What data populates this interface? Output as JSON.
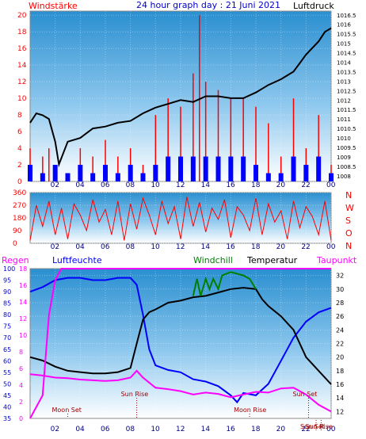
{
  "header": {
    "left_label": "Windstärke",
    "title": "24 hour graph day : 21 Juni 2021",
    "right_label": "Luftdruck"
  },
  "colors": {
    "wind": "#ff0000",
    "gust_bars": "#ff0000",
    "wind_blue": "#0000ff",
    "pressure": "#000000",
    "direction": "#ff0000",
    "humidity": "#0000ff",
    "temperature": "#000000",
    "windchill": "#008000",
    "dewpoint": "#ff00ff",
    "rain": "#ff00ff",
    "sun_text": "#a00000",
    "moon_text": "#a00000"
  },
  "x_ticks": [
    "02",
    "04",
    "06",
    "08",
    "10",
    "12",
    "14",
    "16",
    "18",
    "20",
    "22",
    "00"
  ],
  "chart_data": [
    {
      "type": "bar",
      "title": "24 hour graph day : 21 Juni 2021",
      "left_axis": {
        "label": "Windstärke",
        "ticks": [
          0,
          2,
          4,
          6,
          8,
          10,
          12,
          14,
          16,
          18,
          20
        ],
        "range": [
          0,
          20.5
        ]
      },
      "right_axis": {
        "label": "Luftdruck",
        "ticks": [
          "1008",
          "1008.5",
          "1009",
          "1009.5",
          "1010",
          "1010.5",
          "1011",
          "1011.5",
          "1012",
          "1012.5",
          "1013",
          "1013.5",
          "1014",
          "1014.5",
          "1015",
          "1015.5",
          "1016",
          "1016.5"
        ],
        "range": [
          1007.7,
          1016.7
        ]
      },
      "series": [
        {
          "name": "Windstärke",
          "kind": "gust",
          "color": "#ff0000",
          "x": [
            0,
            1,
            1.5,
            2,
            3,
            4,
            5,
            6,
            7,
            8,
            9,
            10,
            11,
            12,
            13,
            13.5,
            14,
            15,
            16,
            17,
            18,
            19,
            20,
            21,
            22,
            23,
            24
          ],
          "values": [
            4,
            3,
            4,
            2,
            1,
            4,
            3,
            5,
            3,
            4,
            2,
            8,
            10,
            9,
            13,
            20,
            12,
            11,
            10,
            10,
            9,
            7,
            3,
            10,
            4,
            8,
            2
          ]
        },
        {
          "name": "wind",
          "kind": "mean",
          "color": "#0000ff",
          "x": [
            0,
            1,
            2,
            3,
            4,
            5,
            6,
            7,
            8,
            9,
            10,
            11,
            12,
            13,
            14,
            15,
            16,
            17,
            18,
            19,
            20,
            21,
            22,
            23,
            24
          ],
          "values": [
            2,
            1,
            2,
            1,
            2,
            1,
            2,
            1,
            2,
            1,
            2,
            3,
            3,
            3,
            3,
            3,
            3,
            3,
            2,
            1,
            1,
            3,
            2,
            3,
            1
          ]
        },
        {
          "name": "Luftdruck",
          "kind": "line",
          "color": "#000000",
          "x": [
            0,
            0.5,
            1,
            1.5,
            2,
            2.3,
            3,
            4,
            5,
            6,
            7,
            8,
            9,
            10,
            11,
            12,
            13,
            14,
            15,
            16,
            17,
            18,
            19,
            20,
            21,
            22,
            23,
            23.5,
            24
          ],
          "values": [
            1010.8,
            1011.3,
            1011.2,
            1011.0,
            1009.8,
            1008.6,
            1009.8,
            1010.0,
            1010.5,
            1010.6,
            1010.8,
            1010.9,
            1011.3,
            1011.6,
            1011.8,
            1012.0,
            1011.9,
            1012.2,
            1012.2,
            1012.1,
            1012.1,
            1012.4,
            1012.8,
            1013.1,
            1013.5,
            1014.4,
            1015.1,
            1015.6,
            1015.8
          ]
        }
      ]
    },
    {
      "type": "line",
      "title": "",
      "left_axis": {
        "ticks": [
          0,
          90,
          180,
          270,
          360
        ],
        "range": [
          0,
          360
        ]
      },
      "right_labels": [
        "N",
        "W",
        "S",
        "O",
        "N"
      ],
      "series": [
        {
          "name": "direction",
          "color": "#ff0000",
          "x": [
            0,
            0.5,
            1,
            1.5,
            2,
            2.5,
            3,
            3.5,
            4,
            4.5,
            5,
            5.5,
            6,
            6.5,
            7,
            7.5,
            8,
            8.5,
            9,
            9.5,
            10,
            10.5,
            11,
            11.5,
            12,
            12.5,
            13,
            13.5,
            14,
            14.5,
            15,
            15.5,
            16,
            16.5,
            17,
            17.5,
            18,
            18.5,
            19,
            19.5,
            20,
            20.5,
            21,
            21.5,
            22,
            22.5,
            23,
            23.5,
            24
          ],
          "values": [
            20,
            270,
            120,
            300,
            60,
            250,
            30,
            280,
            200,
            90,
            310,
            150,
            240,
            60,
            300,
            20,
            280,
            100,
            320,
            200,
            60,
            300,
            140,
            260,
            30,
            330,
            120,
            290,
            80,
            250,
            170,
            310,
            40,
            260,
            200,
            90,
            320,
            60,
            280,
            150,
            230,
            30,
            300,
            110,
            260,
            190,
            60,
            300,
            20
          ]
        }
      ]
    },
    {
      "type": "line",
      "title": "",
      "legend": [
        "Regen",
        "Luftfeuchte",
        "Windchill",
        "Temperatur",
        "Taupunkt"
      ],
      "left_axis_outer": {
        "label": "Regen",
        "ticks": [
          35,
          40,
          45,
          50,
          55,
          60,
          65,
          70,
          75,
          80,
          85,
          90,
          95,
          100
        ],
        "range": [
          35,
          100
        ]
      },
      "left_axis_inner": {
        "label": "Luftfeuchte",
        "ticks": [
          0,
          2,
          4,
          6,
          8,
          10,
          12,
          14,
          16,
          18
        ],
        "range": [
          0,
          18
        ]
      },
      "right_axis": {
        "label": "Temperatur",
        "ticks": [
          12,
          14,
          16,
          18,
          20,
          22,
          24,
          26,
          28,
          30,
          32
        ],
        "range": [
          11,
          33
        ]
      },
      "series": [
        {
          "name": "Luftfeuchte",
          "color": "#0000ff",
          "x": [
            0,
            1,
            2,
            3,
            4,
            5,
            6,
            7,
            8,
            8.5,
            9,
            9.5,
            10,
            11,
            12,
            13,
            14,
            15,
            16,
            16.5,
            17,
            18,
            19,
            20,
            21,
            22,
            23,
            24
          ],
          "values": [
            90,
            92,
            95,
            96,
            96,
            95,
            95,
            96,
            96,
            93,
            80,
            65,
            58,
            56,
            55,
            52,
            51,
            49,
            45,
            42,
            46,
            45,
            50,
            60,
            70,
            77,
            81,
            83
          ]
        },
        {
          "name": "Temperatur",
          "color": "#000000",
          "x": [
            0,
            1,
            2,
            3,
            4,
            5,
            6,
            7,
            8,
            8.5,
            9,
            9.5,
            10,
            11,
            12,
            13,
            14,
            15,
            16,
            17,
            18,
            18.5,
            19,
            20,
            21,
            22,
            23,
            24
          ],
          "values": [
            20,
            19.5,
            18.6,
            18,
            17.8,
            17.6,
            17.6,
            17.8,
            18.4,
            22,
            25.5,
            26.6,
            27,
            28,
            28.3,
            28.8,
            29,
            29.5,
            30,
            30.2,
            30,
            28.5,
            27.5,
            26,
            24,
            20,
            18,
            16
          ]
        },
        {
          "name": "Windchill",
          "color": "#008000",
          "x": [
            13,
            13.3,
            13.6,
            14,
            14.3,
            14.6,
            15,
            15.3,
            16,
            17,
            17.5,
            18
          ],
          "values": [
            29,
            31.5,
            29,
            31.5,
            30,
            31.5,
            30,
            32,
            32.5,
            32,
            31.5,
            30
          ]
        },
        {
          "name": "Taupunkt",
          "color": "#ff00ff",
          "x": [
            0,
            1,
            2,
            3,
            4,
            5,
            6,
            7,
            8,
            8.5,
            9,
            10,
            11,
            12,
            13,
            14,
            15,
            16,
            17,
            18,
            19,
            20,
            21,
            22,
            23,
            24
          ],
          "values": [
            17.5,
            17.3,
            17.0,
            16.9,
            16.7,
            16.6,
            16.5,
            16.6,
            17.0,
            18,
            17,
            15.5,
            15.3,
            15.0,
            14.5,
            14.8,
            14.6,
            14.1,
            14.5,
            14.9,
            14.8,
            15.4,
            15.5,
            14.5,
            13,
            12
          ]
        },
        {
          "name": "Regen",
          "color": "#ff00ff",
          "x": [
            0,
            1,
            1.5,
            2,
            2.5,
            3,
            24
          ],
          "values": [
            35,
            45,
            80,
            95,
            100,
            100,
            100
          ]
        }
      ],
      "annotations": [
        {
          "text": "Sun Rise",
          "x": 8.5
        },
        {
          "text": "Sun Set",
          "x": 22.2
        },
        {
          "text": "Moon Set",
          "x": 3.0
        },
        {
          "text": "Moon Rise",
          "x": 17.5
        },
        {
          "text": "Sun Set",
          "x": 22.8
        },
        {
          "text": "Sun Rise",
          "x": 23.2
        }
      ]
    }
  ]
}
